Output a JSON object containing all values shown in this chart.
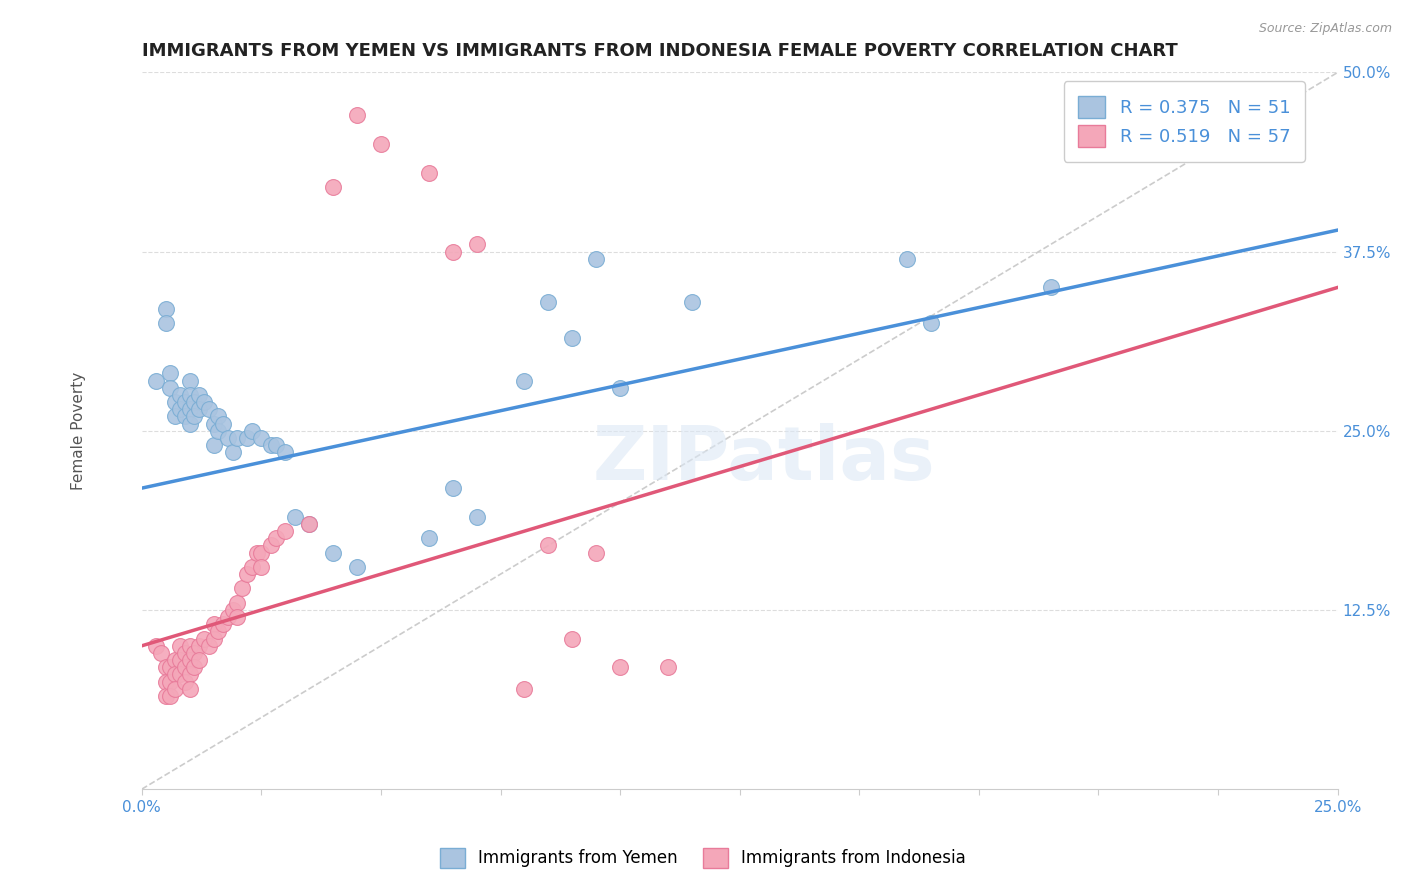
{
  "title": "IMMIGRANTS FROM YEMEN VS IMMIGRANTS FROM INDONESIA FEMALE POVERTY CORRELATION CHART",
  "source": "Source: ZipAtlas.com",
  "ylabel": "Female Poverty",
  "xlim": [
    0.0,
    0.25
  ],
  "ylim": [
    0.0,
    0.5
  ],
  "ytick_labels": [
    "12.5%",
    "25.0%",
    "37.5%",
    "50.0%"
  ],
  "ytick_vals": [
    0.125,
    0.25,
    0.375,
    0.5
  ],
  "xtick_vals": [
    0.0,
    0.025,
    0.05,
    0.075,
    0.1,
    0.125,
    0.15,
    0.175,
    0.2,
    0.225,
    0.25
  ],
  "xtick_labels": [
    "0.0%",
    "",
    "",
    "",
    "",
    "",
    "",
    "",
    "",
    "",
    "25.0%"
  ],
  "watermark": "ZIPatlas",
  "legend1_label": "R = 0.375   N = 51",
  "legend2_label": "R = 0.519   N = 57",
  "yemen_color": "#aac4e0",
  "yemen_edge": "#7aadd4",
  "indonesia_color": "#f4a7b9",
  "indonesia_edge": "#e87b9a",
  "yemen_line_color": "#4a90d9",
  "indonesia_line_color": "#e05878",
  "diagonal_color": "#cccccc",
  "yemen_trend": [
    0.0,
    0.21,
    0.25,
    0.39
  ],
  "indonesia_trend": [
    0.0,
    0.1,
    0.25,
    0.35
  ],
  "yemen_points": [
    [
      0.003,
      0.285
    ],
    [
      0.005,
      0.335
    ],
    [
      0.005,
      0.325
    ],
    [
      0.006,
      0.29
    ],
    [
      0.006,
      0.28
    ],
    [
      0.007,
      0.27
    ],
    [
      0.007,
      0.26
    ],
    [
      0.008,
      0.275
    ],
    [
      0.008,
      0.265
    ],
    [
      0.009,
      0.27
    ],
    [
      0.009,
      0.26
    ],
    [
      0.01,
      0.285
    ],
    [
      0.01,
      0.275
    ],
    [
      0.01,
      0.265
    ],
    [
      0.01,
      0.255
    ],
    [
      0.011,
      0.27
    ],
    [
      0.011,
      0.26
    ],
    [
      0.012,
      0.275
    ],
    [
      0.012,
      0.265
    ],
    [
      0.013,
      0.27
    ],
    [
      0.014,
      0.265
    ],
    [
      0.015,
      0.255
    ],
    [
      0.015,
      0.24
    ],
    [
      0.016,
      0.26
    ],
    [
      0.016,
      0.25
    ],
    [
      0.017,
      0.255
    ],
    [
      0.018,
      0.245
    ],
    [
      0.019,
      0.235
    ],
    [
      0.02,
      0.245
    ],
    [
      0.022,
      0.245
    ],
    [
      0.023,
      0.25
    ],
    [
      0.025,
      0.245
    ],
    [
      0.027,
      0.24
    ],
    [
      0.028,
      0.24
    ],
    [
      0.03,
      0.235
    ],
    [
      0.032,
      0.19
    ],
    [
      0.035,
      0.185
    ],
    [
      0.04,
      0.165
    ],
    [
      0.045,
      0.155
    ],
    [
      0.06,
      0.175
    ],
    [
      0.065,
      0.21
    ],
    [
      0.07,
      0.19
    ],
    [
      0.08,
      0.285
    ],
    [
      0.085,
      0.34
    ],
    [
      0.09,
      0.315
    ],
    [
      0.095,
      0.37
    ],
    [
      0.1,
      0.28
    ],
    [
      0.115,
      0.34
    ],
    [
      0.16,
      0.37
    ],
    [
      0.165,
      0.325
    ],
    [
      0.19,
      0.35
    ]
  ],
  "indonesia_points": [
    [
      0.003,
      0.1
    ],
    [
      0.004,
      0.095
    ],
    [
      0.005,
      0.085
    ],
    [
      0.005,
      0.075
    ],
    [
      0.005,
      0.065
    ],
    [
      0.006,
      0.085
    ],
    [
      0.006,
      0.075
    ],
    [
      0.006,
      0.065
    ],
    [
      0.007,
      0.09
    ],
    [
      0.007,
      0.08
    ],
    [
      0.007,
      0.07
    ],
    [
      0.008,
      0.1
    ],
    [
      0.008,
      0.09
    ],
    [
      0.008,
      0.08
    ],
    [
      0.009,
      0.095
    ],
    [
      0.009,
      0.085
    ],
    [
      0.009,
      0.075
    ],
    [
      0.01,
      0.1
    ],
    [
      0.01,
      0.09
    ],
    [
      0.01,
      0.08
    ],
    [
      0.01,
      0.07
    ],
    [
      0.011,
      0.095
    ],
    [
      0.011,
      0.085
    ],
    [
      0.012,
      0.1
    ],
    [
      0.012,
      0.09
    ],
    [
      0.013,
      0.105
    ],
    [
      0.014,
      0.1
    ],
    [
      0.015,
      0.115
    ],
    [
      0.015,
      0.105
    ],
    [
      0.016,
      0.11
    ],
    [
      0.017,
      0.115
    ],
    [
      0.018,
      0.12
    ],
    [
      0.019,
      0.125
    ],
    [
      0.02,
      0.13
    ],
    [
      0.02,
      0.12
    ],
    [
      0.021,
      0.14
    ],
    [
      0.022,
      0.15
    ],
    [
      0.023,
      0.155
    ],
    [
      0.024,
      0.165
    ],
    [
      0.025,
      0.165
    ],
    [
      0.025,
      0.155
    ],
    [
      0.027,
      0.17
    ],
    [
      0.028,
      0.175
    ],
    [
      0.03,
      0.18
    ],
    [
      0.035,
      0.185
    ],
    [
      0.04,
      0.42
    ],
    [
      0.045,
      0.47
    ],
    [
      0.05,
      0.45
    ],
    [
      0.06,
      0.43
    ],
    [
      0.065,
      0.375
    ],
    [
      0.07,
      0.38
    ],
    [
      0.08,
      0.07
    ],
    [
      0.085,
      0.17
    ],
    [
      0.09,
      0.105
    ],
    [
      0.095,
      0.165
    ],
    [
      0.1,
      0.085
    ],
    [
      0.11,
      0.085
    ]
  ],
  "background_color": "#ffffff",
  "grid_color": "#dddddd",
  "title_fontsize": 13,
  "axis_label_fontsize": 11,
  "tick_fontsize": 11,
  "legend_fontsize": 13
}
